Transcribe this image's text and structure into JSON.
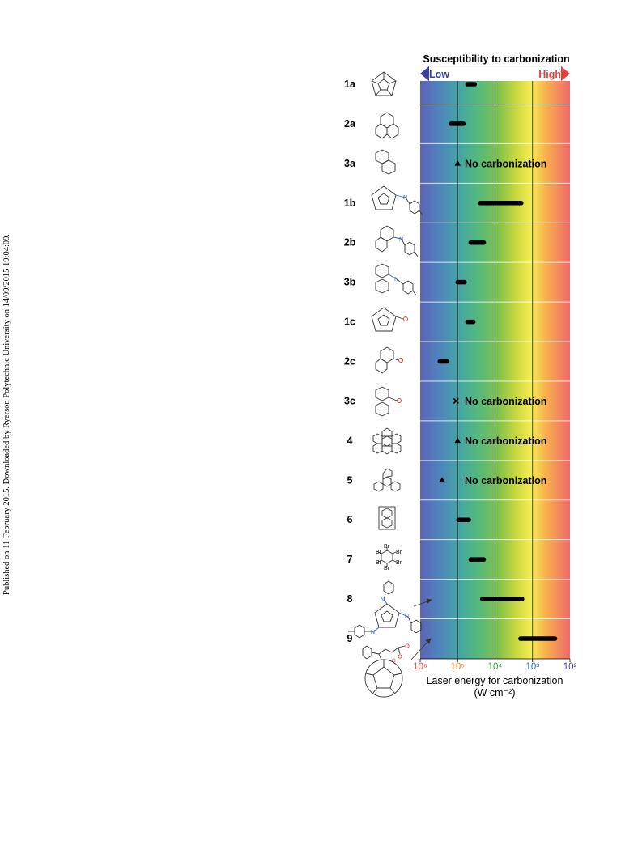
{
  "side_note": "Published on 11 February 2015. Downloaded by Ryerson Polytechnic University on 14/09/2015 19:04:09.",
  "chart_data": {
    "type": "bar",
    "orientation": "horizontal",
    "title": "Susceptibility to carbonization",
    "scale_low": "Low",
    "scale_high": "High",
    "xlabel": "Laser energy for carbonization",
    "xunit": "(W cm⁻²)",
    "x_scale": "log",
    "x_reversed": true,
    "xlim": [
      1000000,
      100
    ],
    "x_ticks": [
      {
        "value": 1000000,
        "label": "10⁶",
        "color": "#e8453c"
      },
      {
        "value": 100000,
        "label": "10⁵",
        "color": "#e98a2b"
      },
      {
        "value": 10000,
        "label": "10⁴",
        "color": "#2e9e3e"
      },
      {
        "value": 1000,
        "label": "10³",
        "color": "#2a6fb5"
      },
      {
        "value": 100,
        "label": "10²",
        "color": "#4a3f9c"
      }
    ],
    "no_carbonization_text": "No carbonization",
    "compounds": [
      {
        "label": "1a",
        "range": [
          55000,
          35000
        ]
      },
      {
        "label": "2a",
        "range": [
          150000,
          70000
        ]
      },
      {
        "label": "3a",
        "marker": "triangle",
        "at": 100000,
        "no_carbonization": true
      },
      {
        "label": "1b",
        "range": [
          25000,
          2000
        ]
      },
      {
        "label": "2b",
        "range": [
          45000,
          20000
        ]
      },
      {
        "label": "3b",
        "range": [
          100000,
          65000
        ]
      },
      {
        "label": "1c",
        "range": [
          55000,
          38000
        ]
      },
      {
        "label": "2c",
        "range": [
          300000,
          190000
        ]
      },
      {
        "label": "3c",
        "marker": "cross",
        "at": 110000,
        "no_carbonization": true
      },
      {
        "label": "4",
        "marker": "triangle",
        "at": 100000,
        "no_carbonization": true
      },
      {
        "label": "5",
        "marker": "triangle",
        "at": 260000,
        "no_carbonization": true
      },
      {
        "label": "6",
        "range": [
          95000,
          50000
        ]
      },
      {
        "label": "7",
        "range": [
          45000,
          20000
        ]
      },
      {
        "label": "8",
        "range": [
          22000,
          1900
        ]
      },
      {
        "label": "9",
        "range": [
          2100,
          250
        ]
      }
    ],
    "substituent_labels": {
      "bromine": "Br",
      "nitrogen": "N",
      "oxygen": "O"
    }
  }
}
